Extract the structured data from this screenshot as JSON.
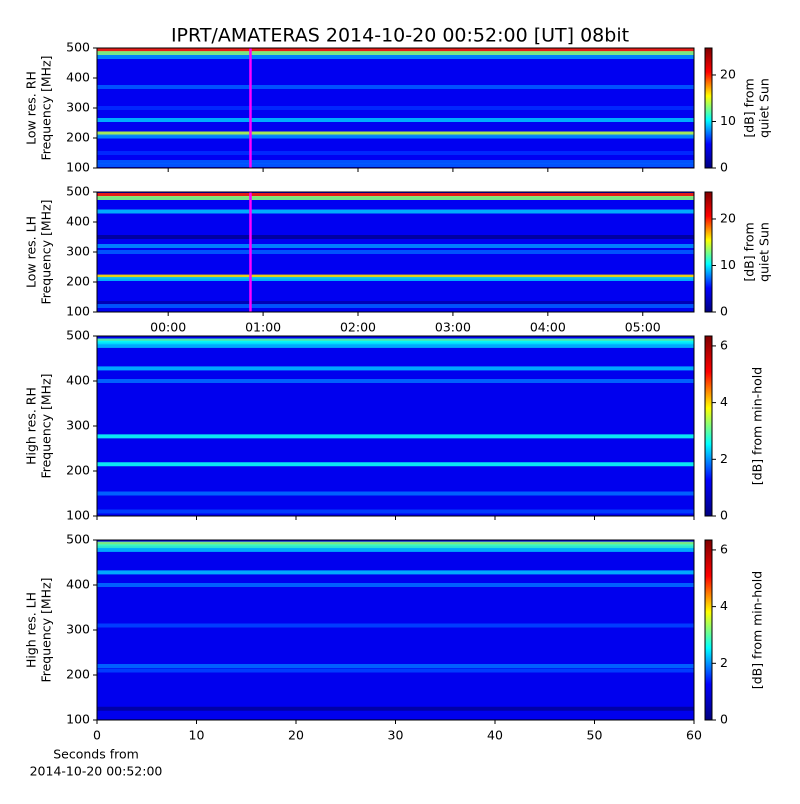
{
  "chart_data": [
    {
      "type": "spectrogram",
      "title": "IPRT/AMATERAS 2014-10-20 00:52:00 [UT]   08bit",
      "ylabel": [
        "Low res. RH",
        "Frequency [MHz]"
      ],
      "xlim": [
        -0.75,
        5.54
      ],
      "ylim": [
        100,
        500
      ],
      "yticks": [
        100,
        200,
        300,
        400,
        500
      ],
      "clim": [
        0,
        25.8
      ],
      "cticks": [
        0,
        10,
        20
      ],
      "clabel": [
        "[dB] from",
        "quiet Sun"
      ],
      "colormap": [
        "#00007f",
        "#0000ff",
        "#00ffff",
        "#ffff00",
        "#ff0000",
        "#7f0000"
      ],
      "background_level": 4.6,
      "marker_x": 0.867,
      "marker_color": "#ff00ff",
      "bands": {
        "frequency": [
          493,
          483,
          470,
          370,
          300,
          260,
          215,
          205,
          150,
          120,
          110
        ],
        "level": [
          20,
          13,
          8,
          7,
          6,
          9,
          14,
          8,
          6,
          7,
          7
        ]
      }
    },
    {
      "type": "spectrogram",
      "ylabel": [
        "Low res. LH",
        "Frequency [MHz]"
      ],
      "xlim": [
        -0.75,
        5.54
      ],
      "ylim": [
        100,
        500
      ],
      "yticks": [
        100,
        200,
        300,
        400,
        500
      ],
      "xticks": [
        {
          "value": 0,
          "label": "00:00"
        },
        {
          "value": 1,
          "label": "01:00"
        },
        {
          "value": 2,
          "label": "02:00"
        },
        {
          "value": 3,
          "label": "03:00"
        },
        {
          "value": 4,
          "label": "04:00"
        },
        {
          "value": 5,
          "label": "05:00"
        }
      ],
      "clim": [
        0,
        25.8
      ],
      "cticks": [
        0,
        10,
        20
      ],
      "clabel": [
        "[dB] from",
        "quiet Sun"
      ],
      "colormap": [
        "#00007f",
        "#0000ff",
        "#00ffff",
        "#ffff00",
        "#ff0000",
        "#7f0000"
      ],
      "background_level": 4.6,
      "marker_x": 0.867,
      "marker_color": "#ff00ff",
      "bands": {
        "frequency": [
          490,
          480,
          435,
          350,
          320,
          300,
          218,
          210,
          130,
          120
        ],
        "level": [
          20,
          13,
          9,
          1,
          8,
          7,
          16,
          9,
          2,
          7
        ]
      }
    },
    {
      "type": "spectrogram",
      "ylabel": [
        "High res. RH",
        "Frequency [MHz]"
      ],
      "xlim": [
        0,
        60
      ],
      "ylim": [
        100,
        500
      ],
      "yticks": [
        100,
        200,
        300,
        400,
        500
      ],
      "clim": [
        0,
        6.35
      ],
      "cticks": [
        0,
        2,
        4,
        6
      ],
      "clabel": [
        "[dB] from min-hold"
      ],
      "colormap": [
        "#00007f",
        "#0000ff",
        "#00ffff",
        "#ffff00",
        "#ff0000",
        "#7f0000"
      ],
      "background_level": 1.1,
      "bands": {
        "frequency": [
          490,
          485,
          478,
          428,
          400,
          277,
          215,
          150,
          110
        ],
        "level": [
          3,
          2.5,
          2.2,
          2.2,
          1.8,
          2.6,
          2.6,
          1.8,
          1.6
        ]
      }
    },
    {
      "type": "spectrogram",
      "ylabel": [
        "High res. LH",
        "Frequency [MHz]"
      ],
      "xlim": [
        0,
        60
      ],
      "ylim": [
        100,
        500
      ],
      "yticks": [
        100,
        200,
        300,
        400,
        500
      ],
      "xticks": [
        0,
        10,
        20,
        30,
        40,
        50,
        60
      ],
      "xlabel": [
        "Seconds from",
        "2014-10-20 00:52:00"
      ],
      "clim": [
        0,
        6.35
      ],
      "cticks": [
        0,
        2,
        4,
        6
      ],
      "clabel": [
        "[dB] from min-hold"
      ],
      "colormap": [
        "#00007f",
        "#0000ff",
        "#00ffff",
        "#ffff00",
        "#ff0000",
        "#7f0000"
      ],
      "background_level": 1.1,
      "bands": {
        "frequency": [
          492,
          486,
          478,
          428,
          400,
          310,
          220,
          210,
          125
        ],
        "level": [
          3.2,
          2.8,
          2.2,
          2.2,
          1.8,
          1.6,
          1.8,
          1.6,
          0.3
        ]
      }
    }
  ]
}
